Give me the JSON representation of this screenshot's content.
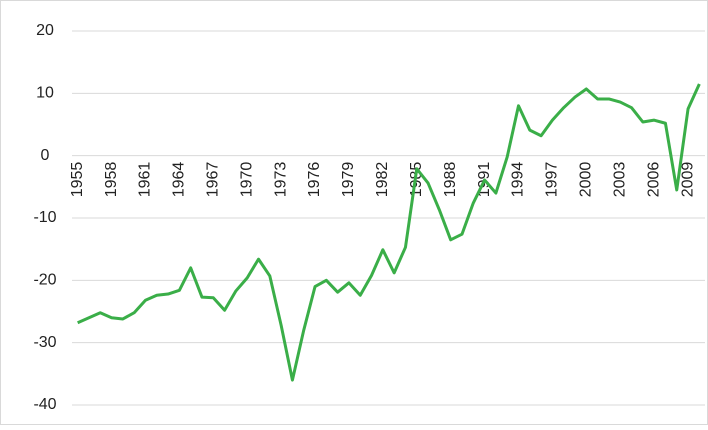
{
  "chart_data": {
    "type": "line",
    "x": [
      1955,
      1956,
      1957,
      1958,
      1959,
      1960,
      1961,
      1962,
      1963,
      1964,
      1965,
      1966,
      1967,
      1968,
      1969,
      1970,
      1971,
      1972,
      1973,
      1974,
      1975,
      1976,
      1977,
      1978,
      1979,
      1980,
      1981,
      1982,
      1983,
      1984,
      1985,
      1986,
      1987,
      1988,
      1989,
      1990,
      1991,
      1992,
      1993,
      1994,
      1995,
      1996,
      1997,
      1998,
      1999,
      2000,
      2001,
      2002,
      2003,
      2004,
      2005,
      2006,
      2007,
      2008,
      2009,
      2010
    ],
    "values": [
      -26.8,
      -26,
      -25.2,
      -26,
      -26.2,
      -25.2,
      -23.2,
      -22.4,
      -22.2,
      -21.6,
      -18,
      -22.7,
      -22.8,
      -24.8,
      -21.7,
      -19.6,
      -16.6,
      -19.3,
      -27.2,
      -36,
      -28,
      -21,
      -20,
      -21.9,
      -20.4,
      -22.4,
      -19.2,
      -15.1,
      -18.8,
      -14.7,
      -2.1,
      -4.4,
      -8.7,
      -13.5,
      -12.6,
      -7.6,
      -3.9,
      -6,
      -0.2,
      8,
      4.1,
      3.2,
      5.7,
      7.7,
      9.4,
      10.7,
      9.1,
      9.1,
      8.6,
      7.7,
      5.4,
      5.7,
      5.2,
      -5.5,
      7.5,
      11.5
    ],
    "color": "#3aae48",
    "xlim": [
      1954.5,
      2010.5
    ],
    "xticks": [
      1955,
      1958,
      1961,
      1964,
      1967,
      1970,
      1973,
      1976,
      1979,
      1982,
      1985,
      1988,
      1991,
      1994,
      1997,
      2000,
      2003,
      2006,
      2009
    ],
    "ylim": [
      -40,
      20
    ],
    "yticks": [
      -40,
      -30,
      -20,
      -10,
      0,
      10,
      20
    ],
    "grid": true
  }
}
